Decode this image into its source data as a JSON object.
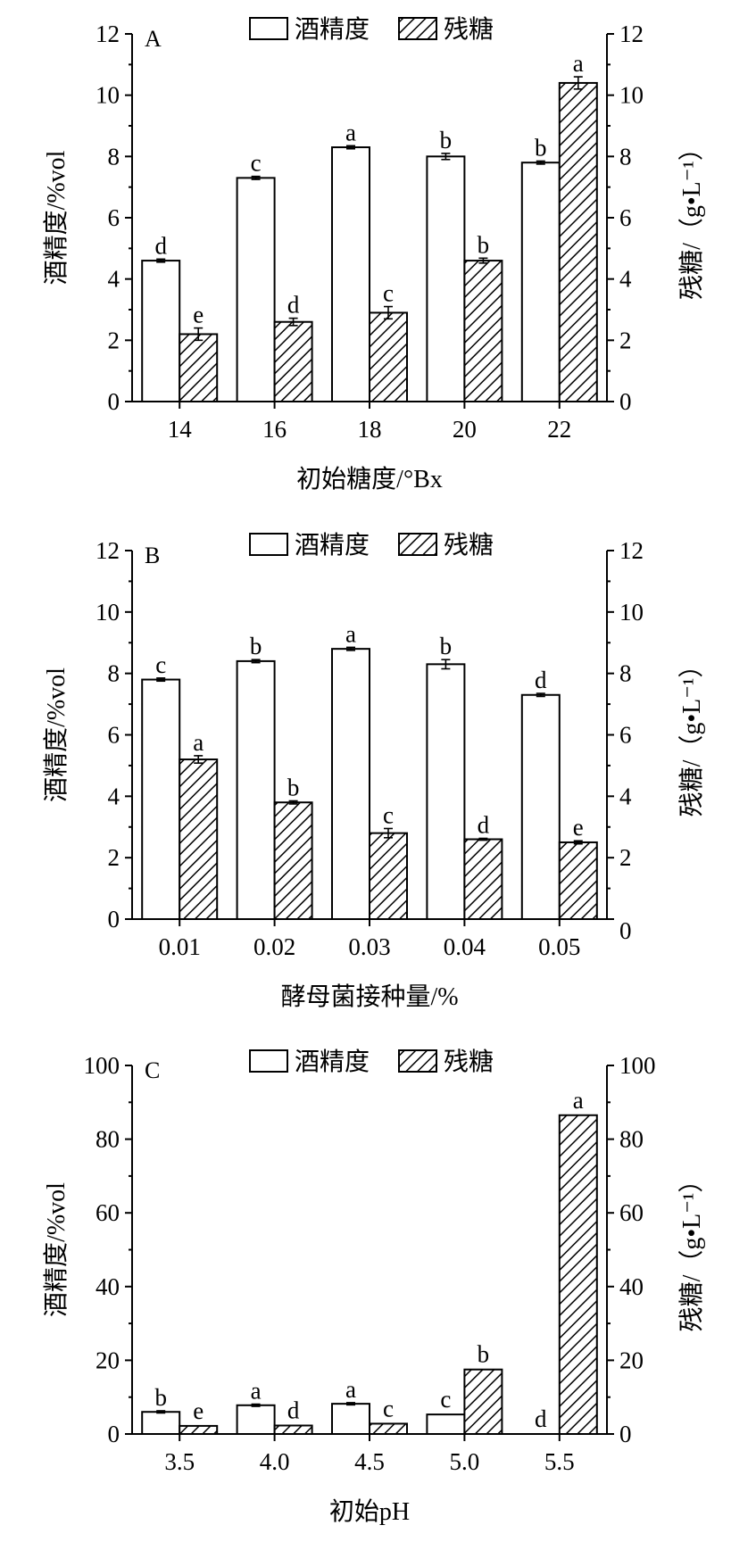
{
  "legend": {
    "alcohol": "酒精度",
    "sugar": "残糖"
  },
  "chart_data": [
    {
      "panel": "A",
      "type": "bar",
      "xlabel": "初始糖度/°Bx",
      "ylabel_left": "酒精度/%vol",
      "ylabel_right": "残糖/（g•L⁻¹）",
      "ylim": [
        0,
        12
      ],
      "yticks": [
        0,
        2,
        4,
        6,
        8,
        10,
        12
      ],
      "right_yticks": [
        0,
        2,
        4,
        6,
        8,
        10,
        12
      ],
      "categories": [
        "14",
        "16",
        "18",
        "20",
        "22"
      ],
      "series": [
        {
          "name": "酒精度",
          "values": [
            4.6,
            7.3,
            8.3,
            8.0,
            7.8
          ],
          "errors": [
            0.05,
            0.05,
            0.05,
            0.1,
            0.05
          ],
          "labels": [
            "d",
            "c",
            "a",
            "b",
            "b"
          ]
        },
        {
          "name": "残糖",
          "values": [
            2.2,
            2.6,
            2.9,
            4.6,
            10.4
          ],
          "errors": [
            0.2,
            0.12,
            0.2,
            0.08,
            0.2
          ],
          "labels": [
            "e",
            "d",
            "c",
            "b",
            "a"
          ]
        }
      ]
    },
    {
      "panel": "B",
      "type": "bar",
      "xlabel": "酵母菌接种量/%",
      "ylabel_left": "酒精度/%vol",
      "ylabel_right": "残糖/（g•L⁻¹）",
      "ylim": [
        0,
        12
      ],
      "yticks": [
        0,
        2,
        4,
        6,
        8,
        10,
        12
      ],
      "right_yticks": [
        0,
        2,
        4,
        6,
        8,
        10,
        12
      ],
      "categories": [
        "0.01",
        "0.02",
        "0.03",
        "0.04",
        "0.05"
      ],
      "series": [
        {
          "name": "酒精度",
          "values": [
            7.8,
            8.4,
            8.8,
            8.3,
            7.3
          ],
          "errors": [
            0.05,
            0.05,
            0.05,
            0.15,
            0.05
          ],
          "labels": [
            "c",
            "b",
            "a",
            "b",
            "d"
          ]
        },
        {
          "name": "残糖",
          "values": [
            5.2,
            3.8,
            2.8,
            2.6,
            2.5
          ],
          "errors": [
            0.12,
            0.05,
            0.15,
            0.03,
            0.05
          ],
          "labels": [
            "a",
            "b",
            "c",
            "d",
            "e"
          ]
        }
      ]
    },
    {
      "panel": "C",
      "type": "bar",
      "xlabel": "初始pH",
      "ylabel_left": "酒精度/%vol",
      "ylabel_right": "残糖/（g•L⁻¹）",
      "ylim": [
        0,
        100
      ],
      "yticks": [
        0,
        20,
        40,
        60,
        80,
        100
      ],
      "right_yticks": [
        0,
        20,
        40,
        60,
        80,
        100
      ],
      "categories": [
        "3.5",
        "4.0",
        "4.5",
        "5.0",
        "5.5"
      ],
      "series": [
        {
          "name": "酒精度",
          "values": [
            6.0,
            7.8,
            8.2,
            5.3,
            0.0
          ],
          "errors": [
            0.3,
            0.3,
            0.3,
            0,
            0
          ],
          "labels": [
            "b",
            "a",
            "a",
            "c",
            "d"
          ]
        },
        {
          "name": "残糖",
          "values": [
            2.2,
            2.3,
            2.8,
            17.5,
            86.5
          ],
          "errors": [
            0,
            0,
            0,
            0,
            0
          ],
          "labels": [
            "e",
            "d",
            "c",
            "b",
            "a"
          ]
        }
      ]
    }
  ]
}
